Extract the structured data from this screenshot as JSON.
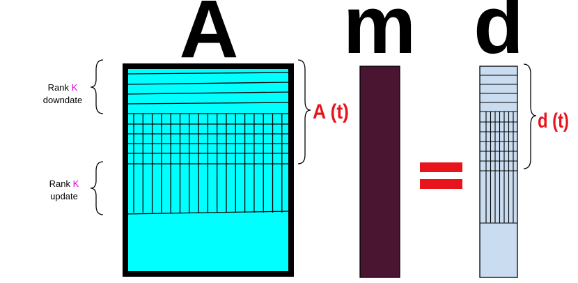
{
  "matrices": {
    "A": "A",
    "m": "m",
    "d": "d"
  },
  "annotations": {
    "downdate": {
      "rank": "Rank",
      "k": "K",
      "text": "downdate"
    },
    "update": {
      "rank": "Rank",
      "k": "K",
      "text": "update"
    },
    "a_t": "A (t)",
    "d_t": "d (t)"
  }
}
